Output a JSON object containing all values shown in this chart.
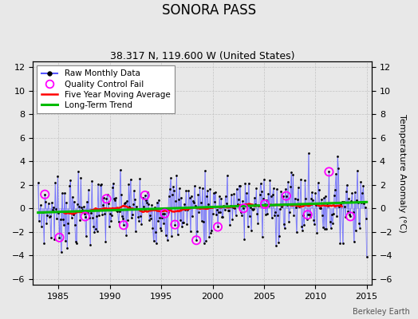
{
  "title": "SONORA PASS",
  "subtitle": "38.317 N, 119.600 W (United States)",
  "right_ylabel": "Temperature Anomaly (°C)",
  "watermark": "Berkeley Earth",
  "xlim": [
    1982.5,
    2015.5
  ],
  "ylim": [
    -6.5,
    12.5
  ],
  "yticks": [
    -6,
    -4,
    -2,
    0,
    2,
    4,
    6,
    8,
    10,
    12
  ],
  "xticks": [
    1985,
    1990,
    1995,
    2000,
    2005,
    2010,
    2015
  ],
  "bg_color": "#e8e8e8",
  "raw_line_color": "#5555ff",
  "raw_line_alpha": 0.5,
  "raw_marker_color": "black",
  "ma_color": "#ff0000",
  "trend_color": "#00bb00",
  "qc_color": "#ff00ff",
  "title_fontsize": 12,
  "subtitle_fontsize": 9,
  "axis_fontsize": 8,
  "legend_fontsize": 7.5,
  "seed": 7
}
